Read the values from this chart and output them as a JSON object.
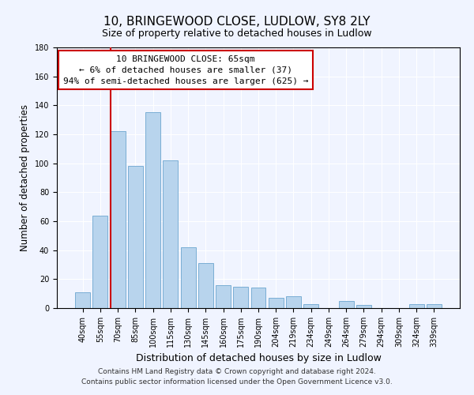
{
  "title": "10, BRINGEWOOD CLOSE, LUDLOW, SY8 2LY",
  "subtitle": "Size of property relative to detached houses in Ludlow",
  "xlabel": "Distribution of detached houses by size in Ludlow",
  "ylabel": "Number of detached properties",
  "bar_labels": [
    "40sqm",
    "55sqm",
    "70sqm",
    "85sqm",
    "100sqm",
    "115sqm",
    "130sqm",
    "145sqm",
    "160sqm",
    "175sqm",
    "190sqm",
    "204sqm",
    "219sqm",
    "234sqm",
    "249sqm",
    "264sqm",
    "279sqm",
    "294sqm",
    "309sqm",
    "324sqm",
    "339sqm"
  ],
  "bar_values": [
    11,
    64,
    122,
    98,
    135,
    102,
    42,
    31,
    16,
    15,
    14,
    7,
    8,
    3,
    0,
    5,
    2,
    0,
    0,
    3,
    3
  ],
  "bar_color": "#b8d4ed",
  "bar_edge_color": "#7aaed4",
  "vline_x_index": 2,
  "vline_color": "#cc0000",
  "ylim": [
    0,
    180
  ],
  "yticks": [
    0,
    20,
    40,
    60,
    80,
    100,
    120,
    140,
    160,
    180
  ],
  "annotation_title": "10 BRINGEWOOD CLOSE: 65sqm",
  "annotation_line1": "← 6% of detached houses are smaller (37)",
  "annotation_line2": "94% of semi-detached houses are larger (625) →",
  "annotation_box_facecolor": "#ffffff",
  "annotation_box_edgecolor": "#cc0000",
  "footer_line1": "Contains HM Land Registry data © Crown copyright and database right 2024.",
  "footer_line2": "Contains public sector information licensed under the Open Government Licence v3.0.",
  "background_color": "#f0f4ff",
  "grid_color": "#ffffff",
  "title_fontsize": 11,
  "subtitle_fontsize": 9,
  "ylabel_fontsize": 8.5,
  "xlabel_fontsize": 9,
  "tick_fontsize": 7,
  "annotation_fontsize": 8,
  "footer_fontsize": 6.5
}
